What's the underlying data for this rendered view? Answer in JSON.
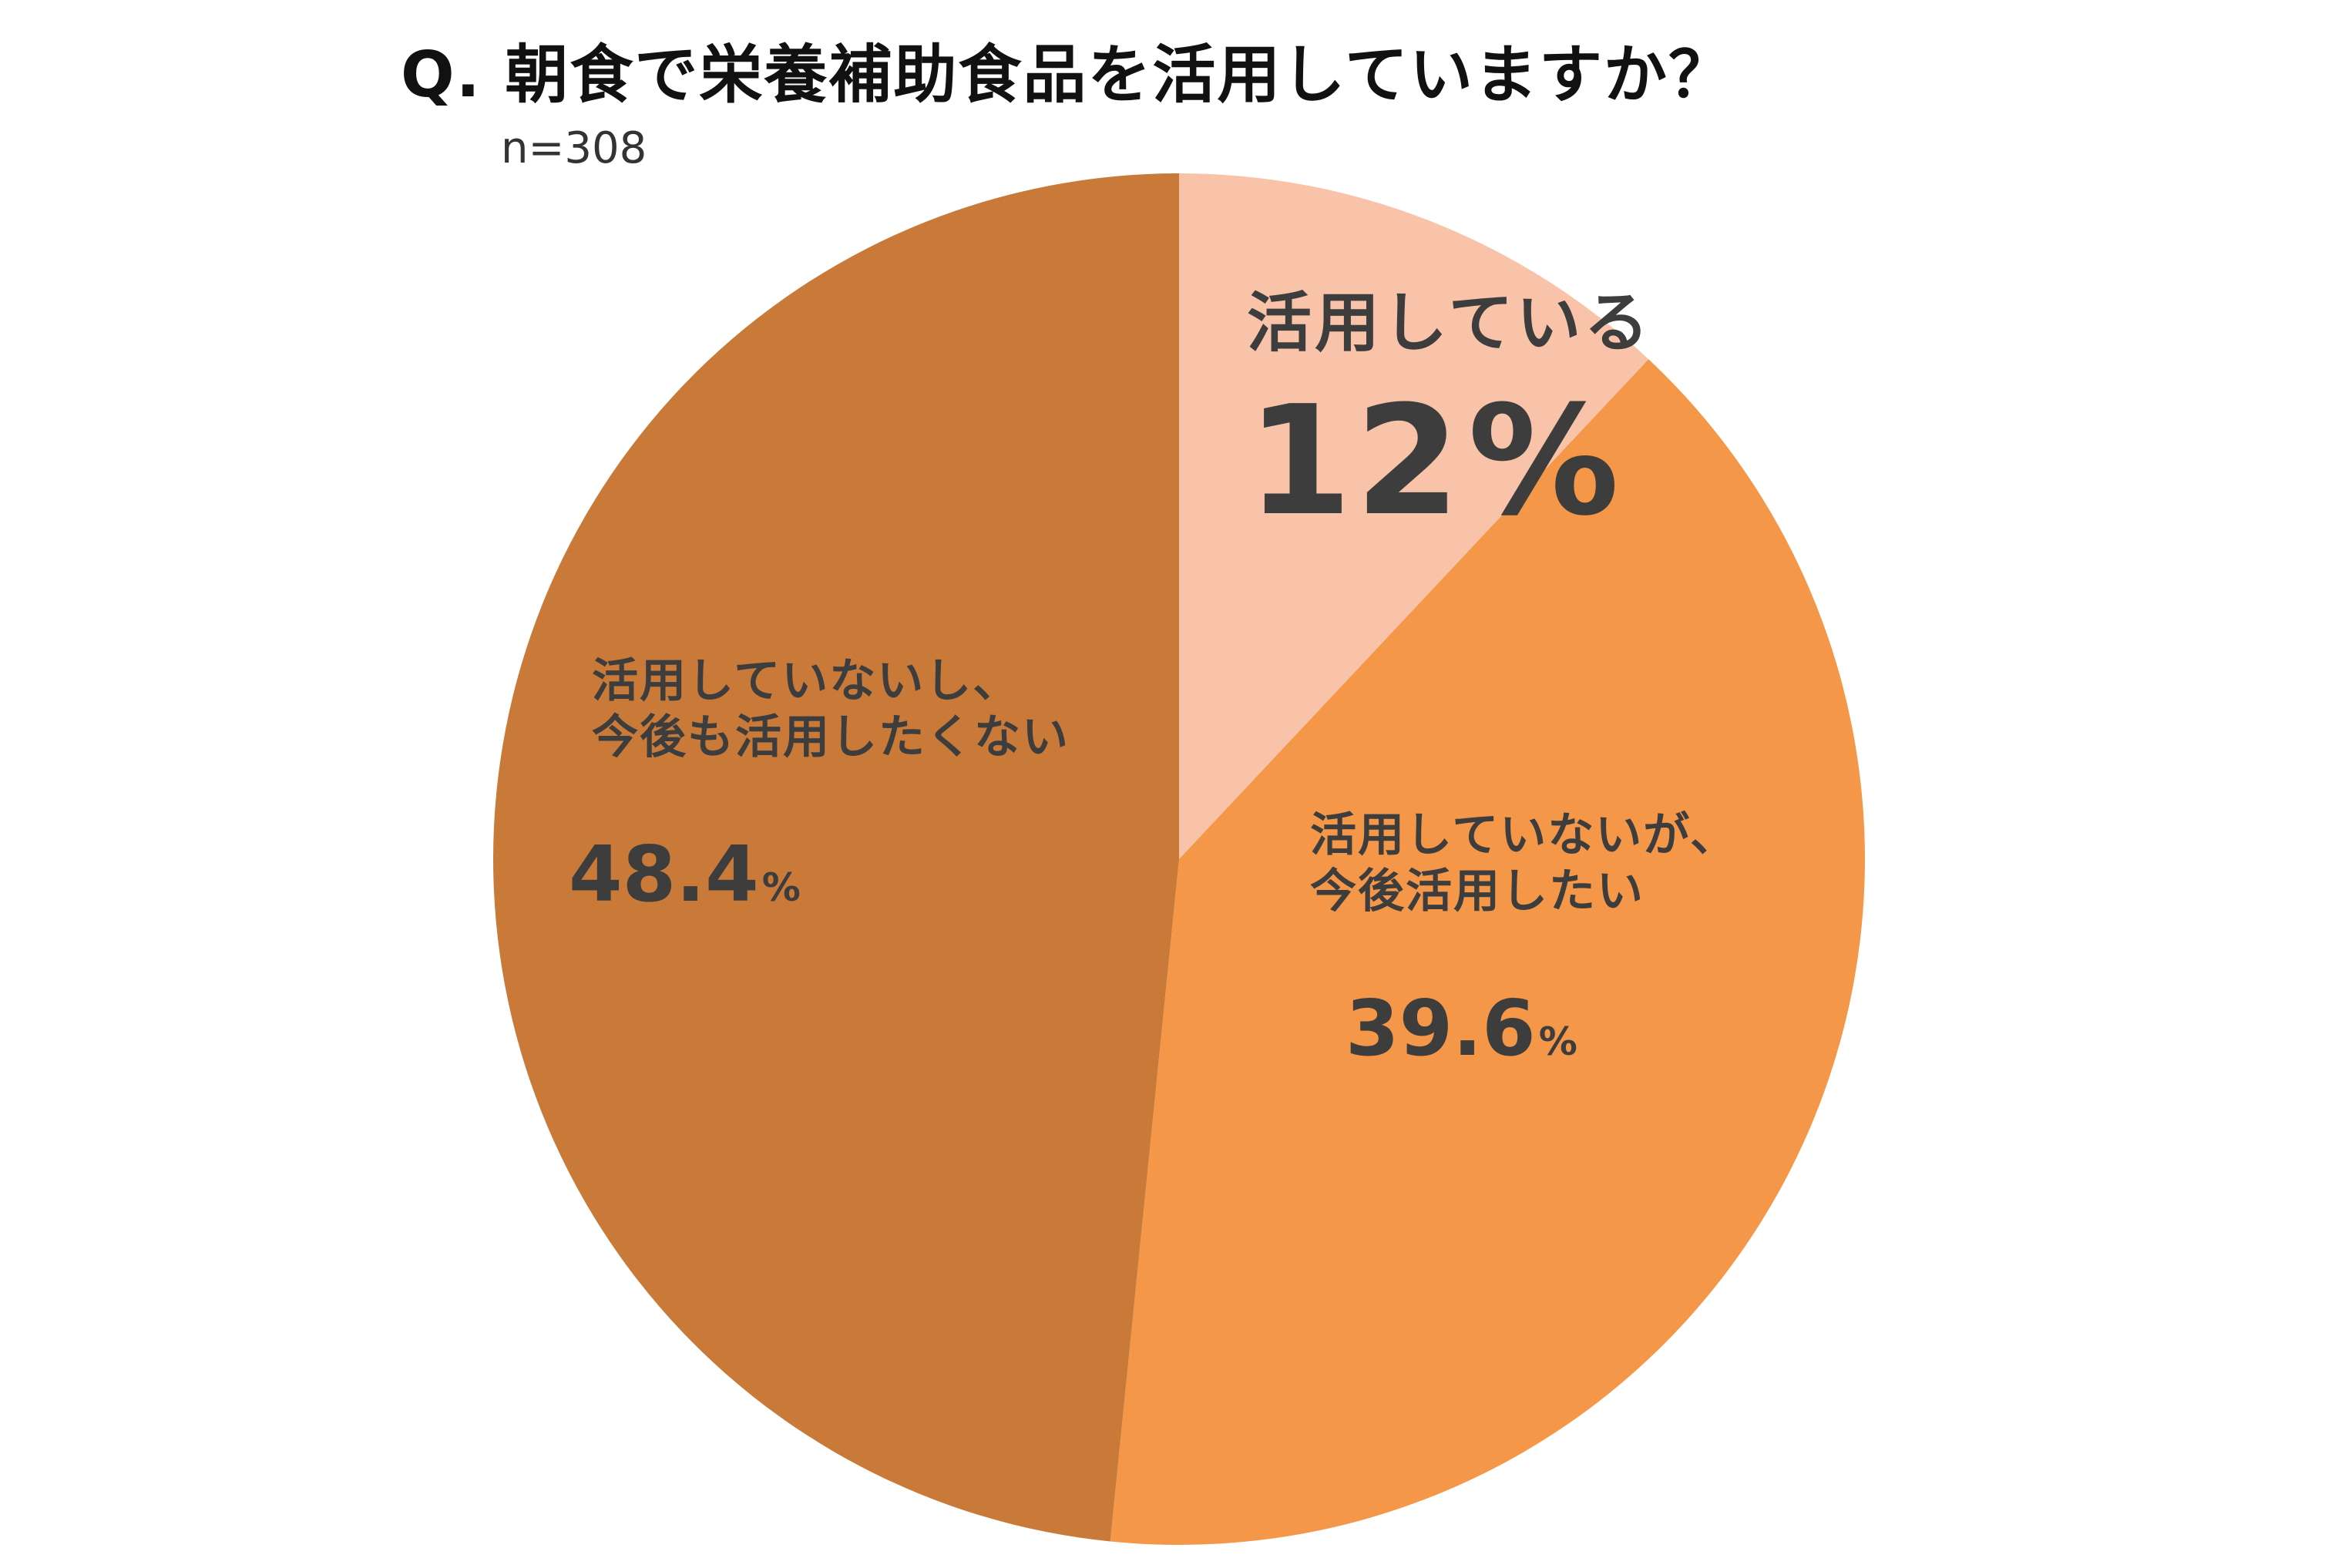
{
  "title": "Q. 朝食で栄養補助食品を活用していますか？",
  "sample_size": "n=308",
  "chart_data": {
    "type": "pie",
    "title": "Q. 朝食で栄養補助食品を活用していますか？",
    "subtitle": "n=308",
    "slices": [
      {
        "label_lines": [
          "活用している"
        ],
        "value": 12,
        "value_text": "12",
        "unit": "%",
        "color": "#F8C3A8"
      },
      {
        "label_lines": [
          "活用していないが、",
          "今後活用したい"
        ],
        "value": 39.6,
        "value_text": "39.6",
        "unit": "%",
        "color": "#F59748"
      },
      {
        "label_lines": [
          "活用していないし、",
          "今後も活用したくない"
        ],
        "value": 48.4,
        "value_text": "48.4",
        "unit": "%",
        "color": "#C97A38"
      }
    ]
  }
}
